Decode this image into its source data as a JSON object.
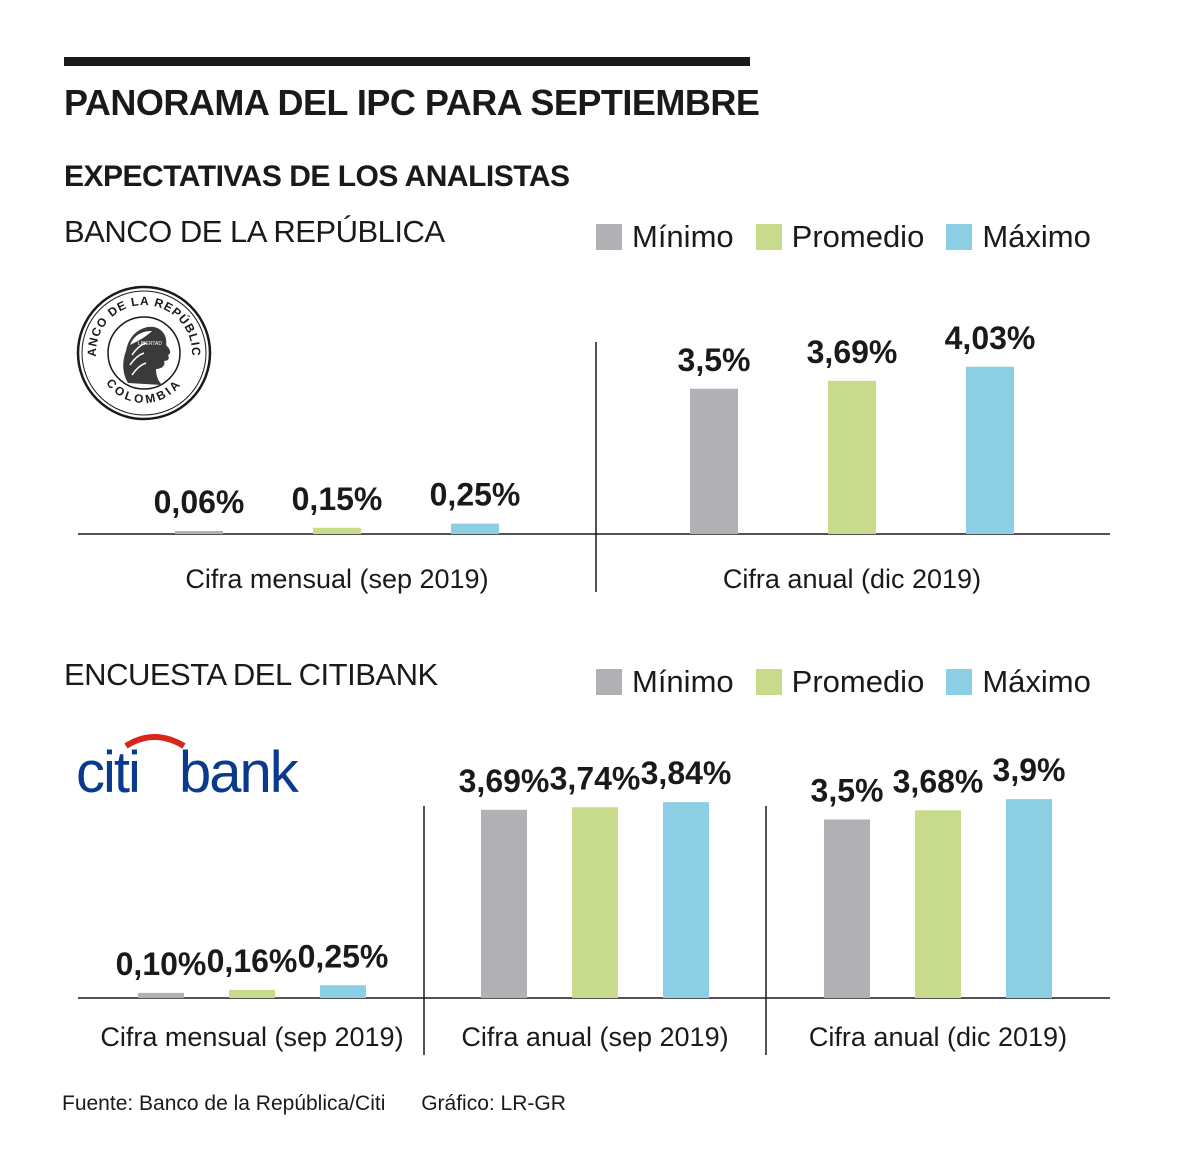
{
  "title": "PANORAMA DEL IPC PARA SEPTIEMBRE",
  "subtitle": "EXPECTATIVAS DE LOS ANALISTAS",
  "legend": {
    "items": [
      {
        "label": "Mínimo",
        "color": "#b1b0b5"
      },
      {
        "label": "Promedio",
        "color": "#c8da8b"
      },
      {
        "label": "Máximo",
        "color": "#8ccfe4"
      }
    ]
  },
  "banco_logo": {
    "top_text": "BANCO DE LA REPÚBLICA",
    "bottom_text": "COLOMBIA",
    "inner_text": "LIBERTAD"
  },
  "citibank_logo": {
    "text_citi": "citi",
    "text_bank": "bank"
  },
  "source": {
    "fuente": "Fuente: Banco de la República/Citi",
    "grafico": "Gráfico: LR-GR"
  },
  "chart_data": [
    {
      "type": "bar",
      "section_label": "BANCO DE LA REPÚBLICA",
      "series_names": [
        "Mínimo",
        "Promedio",
        "Máximo"
      ],
      "groups": [
        {
          "label": "Cifra mensual (sep 2019)",
          "values": [
            0.06,
            0.15,
            0.25
          ],
          "labels": [
            "0,06%",
            "0,15%",
            "0,25%"
          ]
        },
        {
          "label": "Cifra anual (dic 2019)",
          "values": [
            3.5,
            3.69,
            4.03
          ],
          "labels": [
            "3,5%",
            "3,69%",
            "4,03%"
          ]
        }
      ],
      "unit": "%"
    },
    {
      "type": "bar",
      "section_label": "ENCUESTA DEL CITIBANK",
      "series_names": [
        "Mínimo",
        "Promedio",
        "Máximo"
      ],
      "groups": [
        {
          "label": "Cifra mensual (sep 2019)",
          "values": [
            0.1,
            0.16,
            0.25
          ],
          "labels": [
            "0,10%",
            "0,16%",
            "0,25%"
          ]
        },
        {
          "label": "Cifra anual (sep 2019)",
          "values": [
            3.69,
            3.74,
            3.84
          ],
          "labels": [
            "3,69%",
            "3,74%",
            "3,84%"
          ]
        },
        {
          "label": "Cifra anual (dic 2019)",
          "values": [
            3.5,
            3.68,
            3.9
          ],
          "labels": [
            "3,5%",
            "3,68%",
            "3,9%"
          ]
        }
      ],
      "unit": "%"
    }
  ]
}
